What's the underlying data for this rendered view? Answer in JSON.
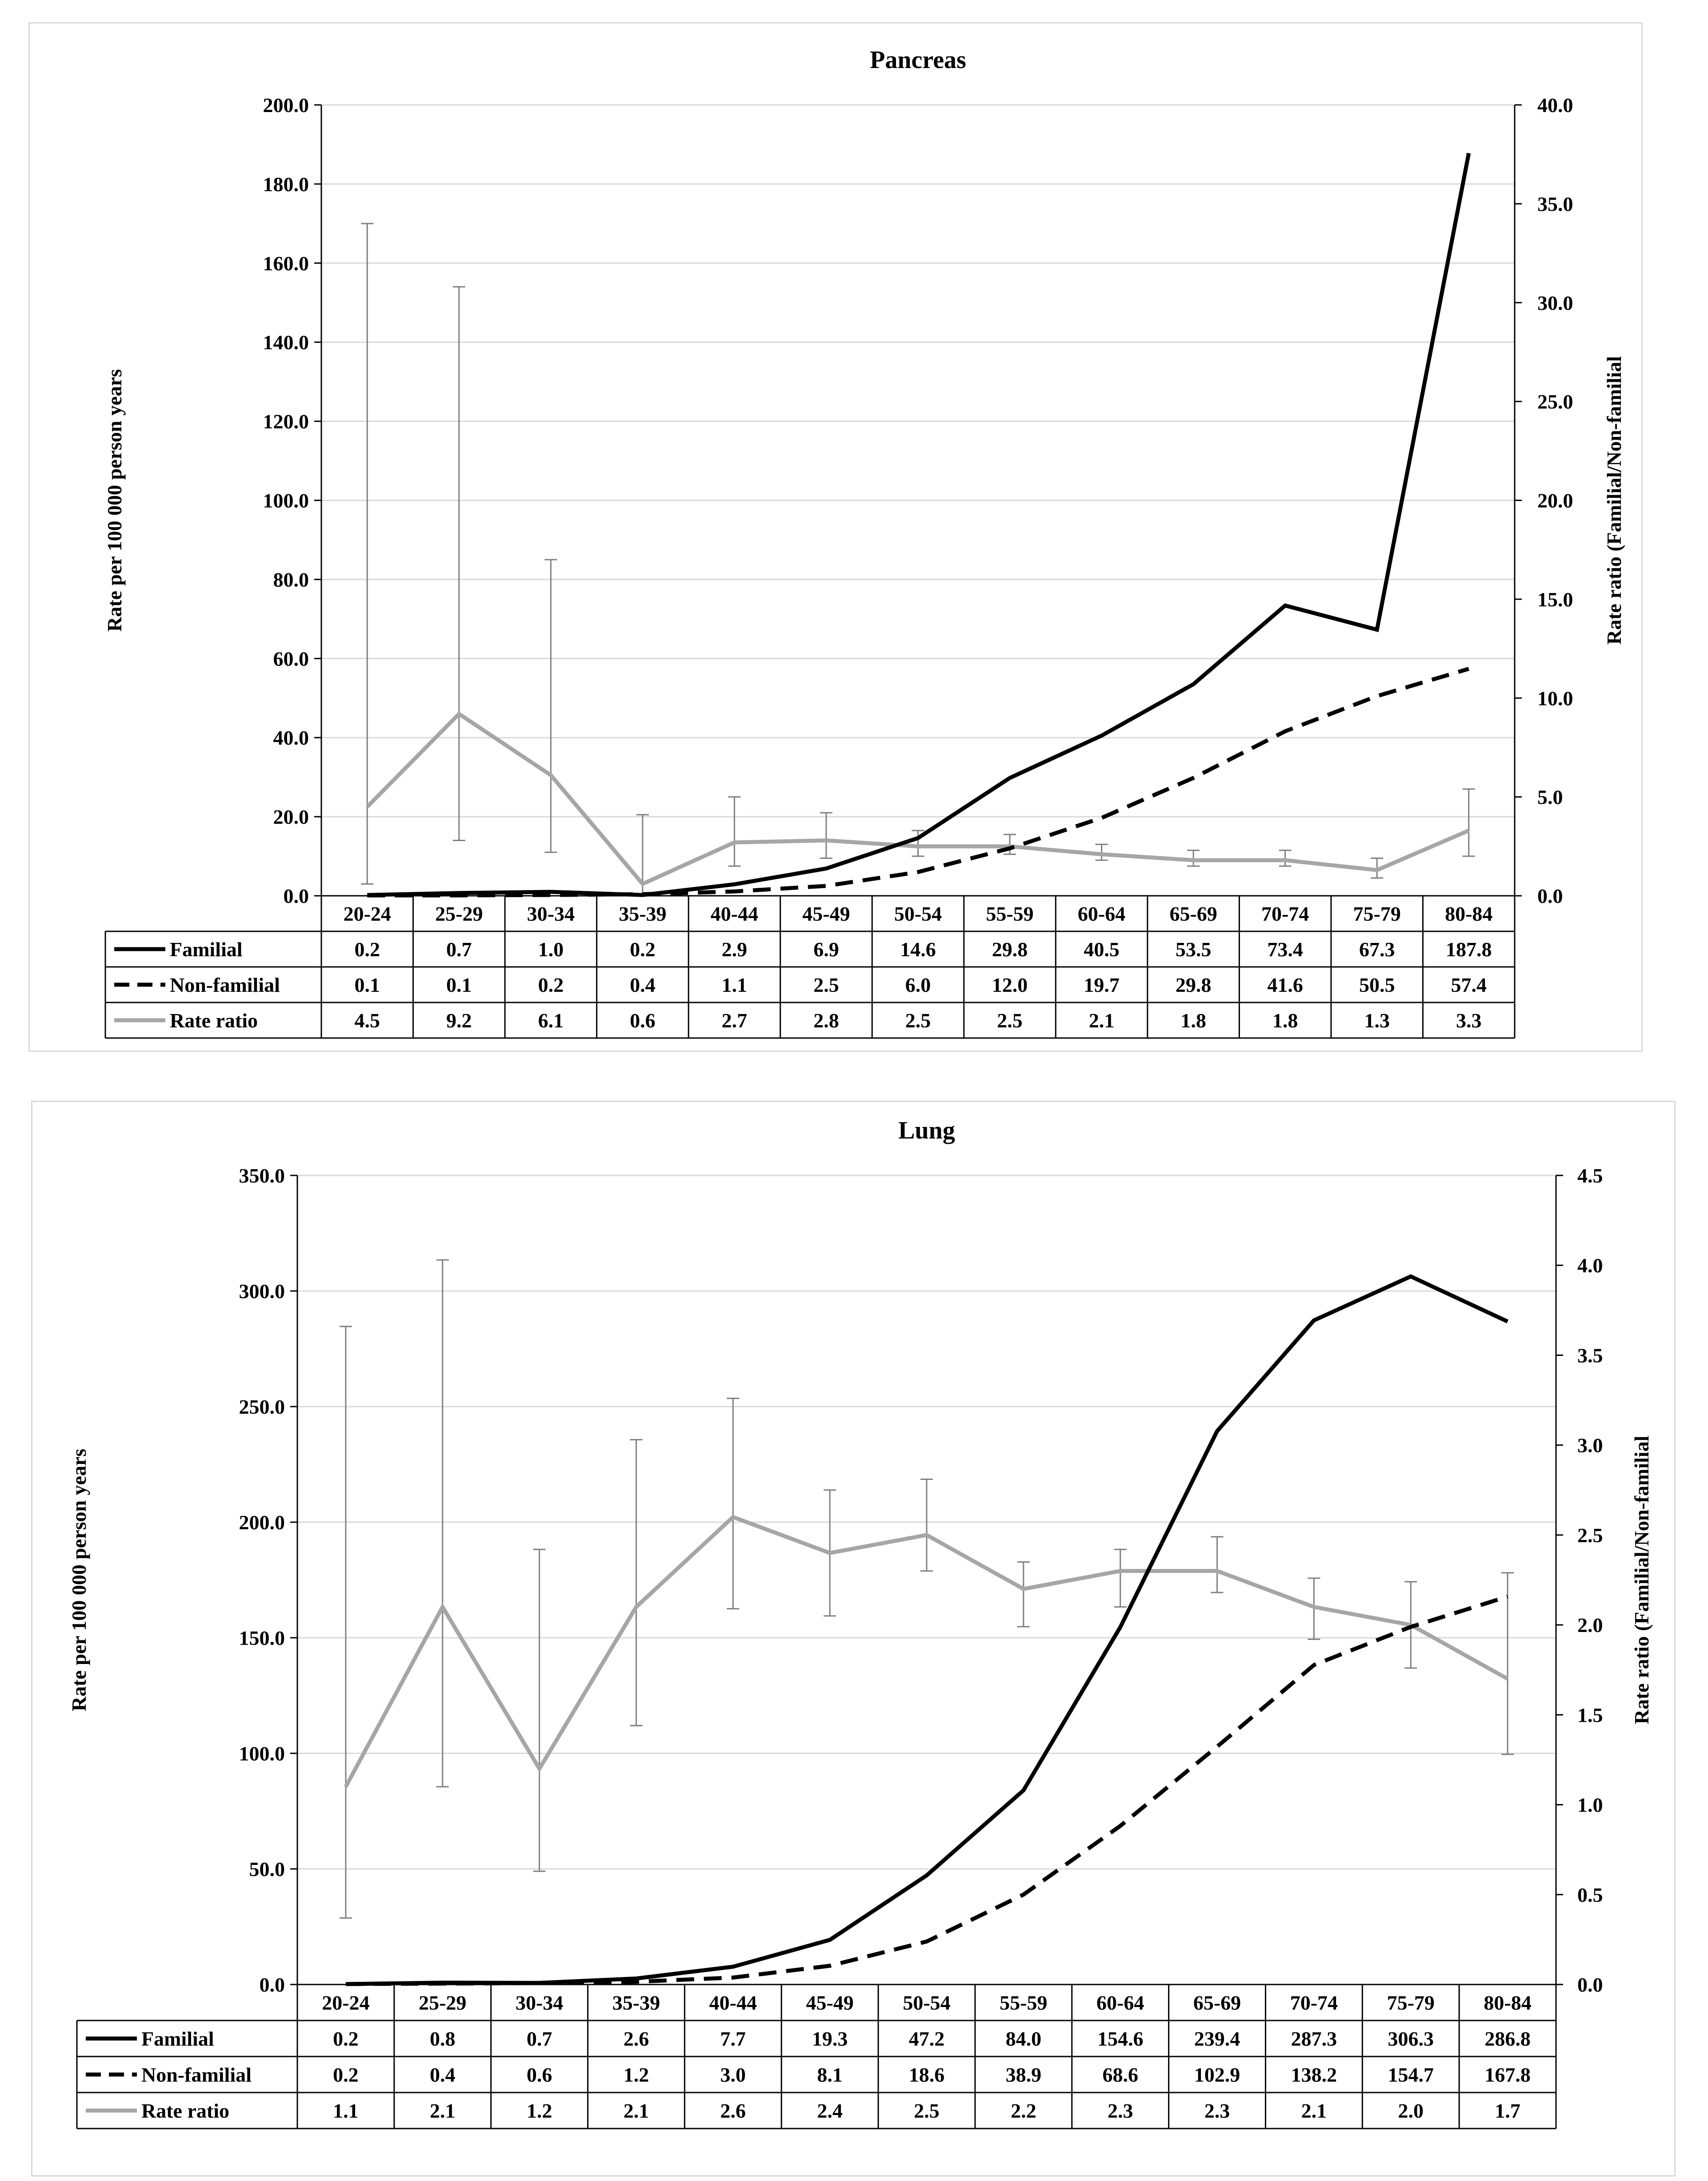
{
  "chart_data": [
    {
      "type": "line",
      "title": "Pancreas",
      "xlabel": "",
      "ylabel": "Rate per 100 000 person years",
      "ylabel_right": "Rate ratio (Familial/Non-familial",
      "ylim": [
        0,
        200
      ],
      "ylim_right": [
        0,
        40
      ],
      "y_ticks": [
        "0.0",
        "20.0",
        "40.0",
        "60.0",
        "80.0",
        "100.0",
        "120.0",
        "140.0",
        "160.0",
        "180.0",
        "200.0"
      ],
      "y_ticks_right": [
        "0.0",
        "5.0",
        "10.0",
        "15.0",
        "20.0",
        "25.0",
        "30.0",
        "35.0",
        "40.0"
      ],
      "categories": [
        "20-24",
        "25-29",
        "30-34",
        "35-39",
        "40-44",
        "45-49",
        "50-54",
        "55-59",
        "60-64",
        "65-69",
        "70-74",
        "75-79",
        "80-84"
      ],
      "series": [
        {
          "name": "Familial",
          "axis": "left",
          "color": "#000000",
          "style": "solid",
          "values": [
            0.2,
            0.7,
            1.0,
            0.2,
            2.9,
            6.9,
            14.6,
            29.8,
            40.5,
            53.5,
            73.4,
            67.3,
            187.8
          ],
          "labels": [
            "0.2",
            "0.7",
            "1.0",
            "0.2",
            "2.9",
            "6.9",
            "14.6",
            "29.8",
            "40.5",
            "53.5",
            "73.4",
            "67.3",
            "187.8"
          ]
        },
        {
          "name": "Non-familial",
          "axis": "left",
          "color": "#000000",
          "style": "dashed",
          "values": [
            0.1,
            0.1,
            0.2,
            0.4,
            1.1,
            2.5,
            6.0,
            12.0,
            19.7,
            29.8,
            41.6,
            50.5,
            57.4
          ],
          "labels": [
            "0.1",
            "0.1",
            "0.2",
            "0.4",
            "1.1",
            "2.5",
            "6.0",
            "12.0",
            "19.7",
            "29.8",
            "41.6",
            "50.5",
            "57.4"
          ]
        },
        {
          "name": "Rate ratio",
          "axis": "right",
          "color": "#a6a6a6",
          "style": "solid",
          "values": [
            4.5,
            9.2,
            6.1,
            0.6,
            2.7,
            2.8,
            2.5,
            2.5,
            2.1,
            1.8,
            1.8,
            1.3,
            3.3
          ],
          "labels": [
            "4.5",
            "9.2",
            "6.1",
            "0.6",
            "2.7",
            "2.8",
            "2.5",
            "2.5",
            "2.1",
            "1.8",
            "1.8",
            "1.3",
            "3.3"
          ],
          "ci_low": [
            0.6,
            2.8,
            2.2,
            0.1,
            1.5,
            1.9,
            2.0,
            2.1,
            1.8,
            1.5,
            1.5,
            0.9,
            2.0
          ],
          "ci_high": [
            34.0,
            30.8,
            17.0,
            4.1,
            5.0,
            4.2,
            3.3,
            3.1,
            2.6,
            2.3,
            2.3,
            1.9,
            5.4
          ]
        }
      ]
    },
    {
      "type": "line",
      "title": "Lung",
      "xlabel": "",
      "ylabel": "Rate per 100 000 person years",
      "ylabel_right": "Rate ratio (Familial/Non-familial",
      "ylim": [
        0,
        350
      ],
      "ylim_right": [
        0,
        4.5
      ],
      "y_ticks": [
        "0.0",
        "50.0",
        "100.0",
        "150.0",
        "200.0",
        "250.0",
        "300.0",
        "350.0"
      ],
      "y_ticks_right": [
        "0.0",
        "0.5",
        "1.0",
        "1.5",
        "2.0",
        "2.5",
        "3.0",
        "3.5",
        "4.0",
        "4.5"
      ],
      "categories": [
        "20-24",
        "25-29",
        "30-34",
        "35-39",
        "40-44",
        "45-49",
        "50-54",
        "55-59",
        "60-64",
        "65-69",
        "70-74",
        "75-79",
        "80-84"
      ],
      "series": [
        {
          "name": "Familial",
          "axis": "left",
          "color": "#000000",
          "style": "solid",
          "values": [
            0.2,
            0.8,
            0.7,
            2.6,
            7.7,
            19.3,
            47.2,
            84.0,
            154.6,
            239.4,
            287.3,
            306.3,
            286.8
          ],
          "labels": [
            "0.2",
            "0.8",
            "0.7",
            "2.6",
            "7.7",
            "19.3",
            "47.2",
            "84.0",
            "154.6",
            "239.4",
            "287.3",
            "306.3",
            "286.8"
          ]
        },
        {
          "name": "Non-familial",
          "axis": "left",
          "color": "#000000",
          "style": "dashed",
          "values": [
            0.2,
            0.4,
            0.6,
            1.2,
            3.0,
            8.1,
            18.6,
            38.9,
            68.6,
            102.9,
            138.2,
            154.7,
            167.8
          ],
          "labels": [
            "0.2",
            "0.4",
            "0.6",
            "1.2",
            "3.0",
            "8.1",
            "18.6",
            "38.9",
            "68.6",
            "102.9",
            "138.2",
            "154.7",
            "167.8"
          ]
        },
        {
          "name": "Rate ratio",
          "axis": "right",
          "color": "#a6a6a6",
          "style": "solid",
          "values": [
            1.1,
            2.1,
            1.2,
            2.1,
            2.6,
            2.4,
            2.5,
            2.2,
            2.3,
            2.3,
            2.1,
            2.0,
            1.7
          ],
          "labels": [
            "1.1",
            "2.1",
            "1.2",
            "2.1",
            "2.6",
            "2.4",
            "2.5",
            "2.2",
            "2.3",
            "2.3",
            "2.1",
            "2.0",
            "1.7"
          ],
          "ci_low": [
            0.37,
            1.1,
            0.63,
            1.44,
            2.09,
            2.05,
            2.3,
            1.99,
            2.1,
            2.18,
            1.92,
            1.76,
            1.28
          ],
          "ci_high": [
            3.66,
            4.03,
            2.42,
            3.03,
            3.26,
            2.75,
            2.81,
            2.35,
            2.42,
            2.49,
            2.26,
            2.24,
            2.29
          ]
        }
      ]
    }
  ]
}
